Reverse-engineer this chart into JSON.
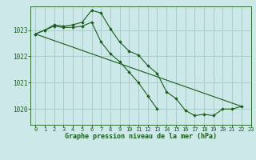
{
  "background_color": "#cce8e8",
  "grid_color": "#aacccc",
  "line_color": "#1a5c1a",
  "title": "Graphe pression niveau de la mer (hPa)",
  "xlim": [
    -0.5,
    23
  ],
  "ylim": [
    1019.4,
    1023.9
  ],
  "yticks": [
    1020,
    1021,
    1022,
    1023
  ],
  "xticks": [
    0,
    1,
    2,
    3,
    4,
    5,
    6,
    7,
    8,
    9,
    10,
    11,
    12,
    13,
    14,
    15,
    16,
    17,
    18,
    19,
    20,
    21,
    22,
    23
  ],
  "series1_x": [
    0,
    1,
    2,
    3,
    4,
    5,
    6,
    7,
    8,
    9,
    10,
    11,
    12,
    13,
    14,
    15,
    16,
    17,
    18,
    19,
    20,
    21,
    22
  ],
  "series1_y": [
    1022.85,
    1023.0,
    1023.2,
    1023.15,
    1023.2,
    1023.3,
    1023.75,
    1023.65,
    1023.05,
    1022.55,
    1022.2,
    1022.05,
    1021.65,
    1021.35,
    1020.65,
    1020.4,
    1019.95,
    1019.75,
    1019.8,
    1019.75,
    1020.0,
    1020.0,
    1020.1
  ],
  "series2_x": [
    0,
    22
  ],
  "series2_y": [
    1022.85,
    1020.1
  ],
  "series3_x": [
    0,
    1,
    2,
    3,
    4,
    5,
    6,
    7,
    8,
    9,
    10,
    11,
    12,
    13
  ],
  "series3_y": [
    1022.85,
    1023.0,
    1023.15,
    1023.1,
    1023.1,
    1023.15,
    1023.3,
    1022.55,
    1022.1,
    1021.8,
    1021.4,
    1021.0,
    1020.5,
    1020.0
  ]
}
